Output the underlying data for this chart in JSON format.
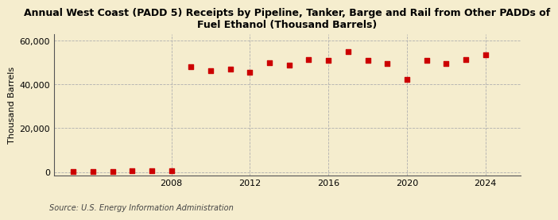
{
  "title": "Annual West Coast (PADD 5) Receipts by Pipeline, Tanker, Barge and Rail from Other PADDs of\nFuel Ethanol (Thousand Barrels)",
  "ylabel": "Thousand Barrels",
  "source": "Source: U.S. Energy Information Administration",
  "background_color": "#f5edce",
  "plot_bg_color": "#f5edce",
  "marker_color": "#cc0000",
  "years": [
    2003,
    2004,
    2005,
    2006,
    2007,
    2008,
    2009,
    2010,
    2011,
    2012,
    2013,
    2014,
    2015,
    2016,
    2017,
    2018,
    2019,
    2020,
    2021,
    2022,
    2023,
    2024
  ],
  "values": [
    120,
    180,
    300,
    380,
    480,
    560,
    48000,
    46500,
    47000,
    45500,
    50000,
    49000,
    51500,
    51000,
    55000,
    51000,
    49500,
    42500,
    51000,
    49500,
    51500,
    53500
  ],
  "ylim": [
    -1500,
    63000
  ],
  "yticks": [
    0,
    20000,
    40000,
    60000
  ],
  "xticks": [
    2008,
    2012,
    2016,
    2020,
    2024
  ],
  "xlim": [
    2002.0,
    2025.8
  ],
  "grid_color": "#b0b0b0",
  "title_fontsize": 9.0,
  "axis_fontsize": 8.0,
  "source_fontsize": 7.0
}
